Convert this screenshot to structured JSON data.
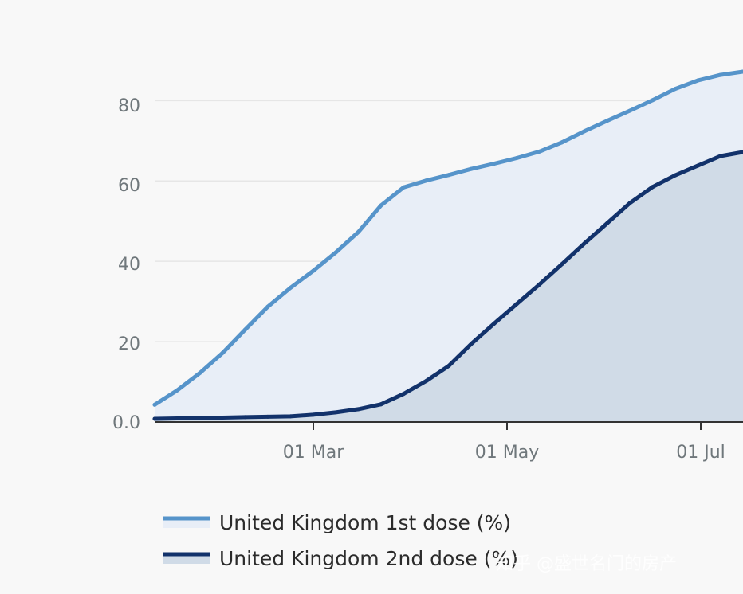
{
  "chart_data": {
    "type": "area",
    "title": "",
    "xlabel": "",
    "ylabel": "",
    "x_tick_labels": [
      "01 Mar",
      "01 May",
      "01 Jul"
    ],
    "y_tick_labels": [
      "0.0",
      "20",
      "40",
      "60",
      "80"
    ],
    "ylim": [
      0,
      88
    ],
    "grid": true,
    "legend_position": "bottom-left",
    "colors": {
      "first_dose_line": "#5694ca",
      "first_dose_fill": "#e8eef7",
      "second_dose_line": "#12326b",
      "second_dose_fill": "#d0dbe7",
      "grid": "#e6e6e6",
      "axis": "#333333",
      "background": "#f8f8f8"
    },
    "x": [
      "2021-01-11",
      "2021-01-18",
      "2021-01-25",
      "2021-02-01",
      "2021-02-08",
      "2021-02-15",
      "2021-02-22",
      "2021-03-01",
      "2021-03-08",
      "2021-03-15",
      "2021-03-22",
      "2021-03-29",
      "2021-04-05",
      "2021-04-12",
      "2021-04-19",
      "2021-04-26",
      "2021-05-03",
      "2021-05-10",
      "2021-05-17",
      "2021-05-24",
      "2021-05-31",
      "2021-06-07",
      "2021-06-14",
      "2021-06-21",
      "2021-06-28",
      "2021-07-05",
      "2021-07-12"
    ],
    "series": [
      {
        "name": "United Kingdom 1st dose (%)",
        "values": [
          4.3,
          7.9,
          12.2,
          17.2,
          23.0,
          28.7,
          33.4,
          37.6,
          42.2,
          47.3,
          53.9,
          58.4,
          60.1,
          61.5,
          63.0,
          64.3,
          65.7,
          67.3,
          69.6,
          72.4,
          75.0,
          77.5,
          80.1,
          82.9,
          85.0,
          86.4,
          87.2
        ]
      },
      {
        "name": "United Kingdom 2nd dose (%)",
        "values": [
          0.8,
          0.9,
          1.0,
          1.1,
          1.2,
          1.3,
          1.4,
          1.8,
          2.4,
          3.2,
          4.4,
          7.0,
          10.2,
          14.0,
          19.5,
          24.5,
          29.4,
          34.2,
          39.3,
          44.5,
          49.5,
          54.5,
          58.5,
          61.4,
          63.8,
          66.2,
          67.2
        ]
      }
    ]
  },
  "watermark": "知乎 @盛世名门的房产"
}
